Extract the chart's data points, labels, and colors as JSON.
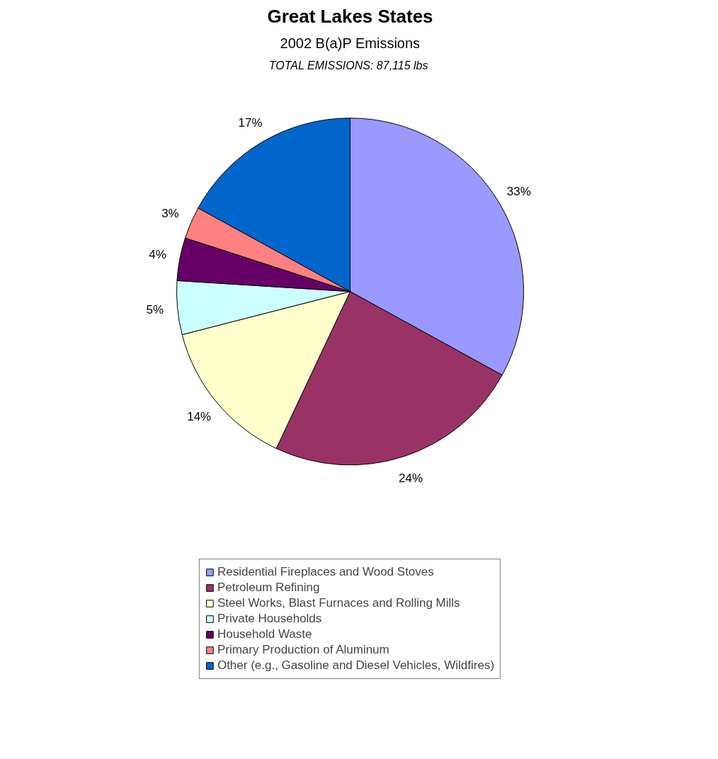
{
  "chart_data": {
    "type": "pie",
    "title": "Great Lakes States",
    "subtitle": "2002 B(a)P Emissions",
    "annotations": [
      "TOTAL EMISSIONS:  87,115 lbs"
    ],
    "categories": [
      "Residential Fireplaces and Wood Stoves",
      "Petroleum Refining",
      "Steel Works, Blast Furnaces and Rolling Mills",
      "Private Households",
      "Household Waste",
      "Primary Production of Aluminum",
      "Other (e.g., Gasoline and Diesel Vehicles, Wildfires)"
    ],
    "values": [
      33,
      24,
      14,
      5,
      4,
      3,
      17
    ],
    "value_labels": [
      "33%",
      "24%",
      "14%",
      "5%",
      "4%",
      "3%",
      "17%"
    ],
    "colors": [
      "#9999ff",
      "#993366",
      "#ffffcc",
      "#ccffff",
      "#660066",
      "#ff8080",
      "#0066cc"
    ],
    "legend": "bottom"
  }
}
